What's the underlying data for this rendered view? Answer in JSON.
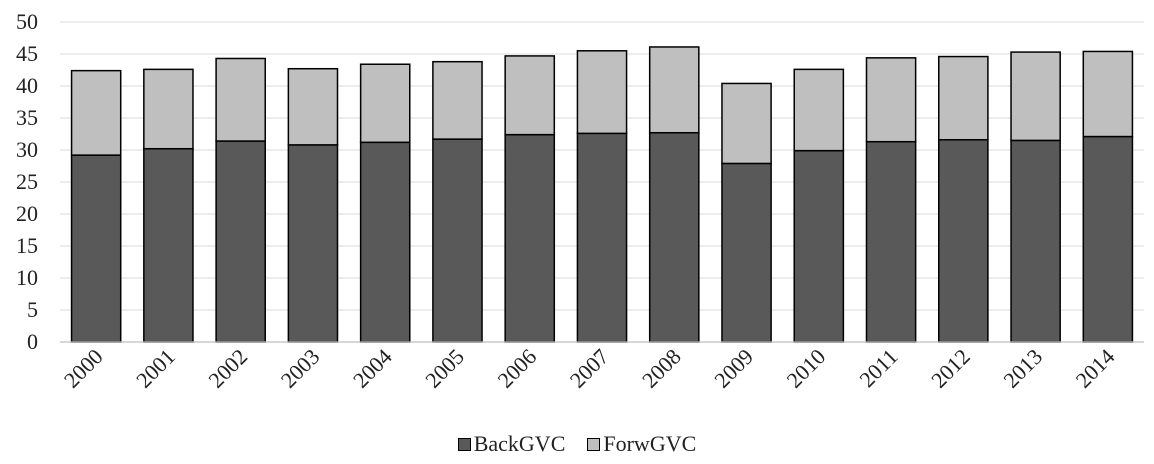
{
  "chart_data": {
    "type": "bar",
    "stacked": true,
    "categories": [
      "2000",
      "2001",
      "2002",
      "2003",
      "2004",
      "2005",
      "2006",
      "2007",
      "2008",
      "2009",
      "2010",
      "2011",
      "2012",
      "2013",
      "2014"
    ],
    "series": [
      {
        "name": "BackGVC",
        "color": "#595959",
        "values": [
          29.2,
          30.2,
          31.4,
          30.8,
          31.2,
          31.7,
          32.4,
          32.6,
          32.7,
          27.9,
          29.9,
          31.3,
          31.6,
          31.5,
          32.1
        ]
      },
      {
        "name": "ForwGVC",
        "color": "#bfbfbf",
        "values": [
          13.2,
          12.4,
          12.9,
          11.9,
          12.2,
          12.1,
          12.3,
          12.9,
          13.4,
          12.5,
          12.7,
          13.1,
          13.0,
          13.8,
          13.3
        ]
      }
    ],
    "ylim": [
      0,
      50
    ],
    "yticks": [
      0,
      5,
      10,
      15,
      20,
      25,
      30,
      35,
      40,
      45,
      50
    ],
    "grid": true,
    "legend_position": "bottom-center",
    "title": "",
    "xlabel": "",
    "ylabel": ""
  }
}
